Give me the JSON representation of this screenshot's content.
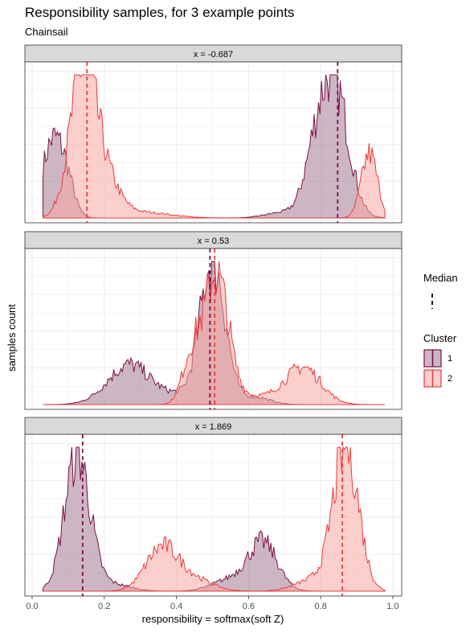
{
  "chart_data": {
    "type": "area",
    "title": "Responsibility samples, for 3 example points",
    "subtitle": "Chainsail",
    "xlabel": "responsibility = softmax(soft Z)",
    "ylabel": "samples count",
    "xlim": [
      0,
      1
    ],
    "x_ticks": [
      "0.0",
      "0.2",
      "0.4",
      "0.6",
      "0.8",
      "1.0"
    ],
    "grid": true,
    "legend": {
      "placement": "right",
      "median_title": "Median",
      "cluster_title": "Cluster",
      "entries": [
        "1",
        "2"
      ]
    },
    "colors": {
      "cluster1_line": "#7b1146",
      "cluster1_fill": "#a47a93",
      "cluster2_line": "#ec3b3b",
      "cluster2_fill": "#f8a7a3",
      "median1": "#7b1146",
      "median2": "#e8403f"
    },
    "panels": [
      {
        "label": "x = -0.687",
        "medians": [
          0.847,
          0.152
        ],
        "series": [
          {
            "name": "1",
            "peaks": [
              [
                0.06,
                0.032,
                0.55
              ],
              [
                0.1,
                0.02,
                0.1
              ],
              [
                0.835,
                0.04,
                0.95
              ],
              [
                0.78,
                0.03,
                0.25
              ],
              [
                0.7,
                0.05,
                0.04
              ]
            ],
            "domain": [
              0.03,
              0.98
            ]
          },
          {
            "name": "2",
            "peaks": [
              [
                0.14,
                0.036,
                1.0
              ],
              [
                0.2,
                0.04,
                0.25
              ],
              [
                0.935,
                0.022,
                0.45
              ],
              [
                0.3,
                0.08,
                0.04
              ]
            ],
            "domain": [
              0.03,
              0.98
            ]
          }
        ]
      },
      {
        "label": "x = 0.53",
        "medians": [
          0.493,
          0.506
        ],
        "series": [
          {
            "name": "1",
            "peaks": [
              [
                0.5,
                0.035,
                1.0
              ],
              [
                0.27,
                0.06,
                0.28
              ],
              [
                0.4,
                0.04,
                0.05
              ],
              [
                0.62,
                0.04,
                0.05
              ]
            ],
            "domain": [
              0.03,
              0.98
            ]
          },
          {
            "name": "2",
            "peaks": [
              [
                0.51,
                0.035,
                0.9
              ],
              [
                0.44,
                0.025,
                0.3
              ],
              [
                0.75,
                0.05,
                0.26
              ],
              [
                0.62,
                0.05,
                0.05
              ]
            ],
            "domain": [
              0.03,
              0.98
            ]
          }
        ]
      },
      {
        "label": "x = 1.869",
        "medians": [
          0.14,
          0.86
        ],
        "series": [
          {
            "name": "1",
            "peaks": [
              [
                0.125,
                0.035,
                0.95
              ],
              [
                0.64,
                0.04,
                0.33
              ],
              [
                0.55,
                0.05,
                0.08
              ],
              [
                0.22,
                0.05,
                0.05
              ]
            ],
            "domain": [
              0.03,
              0.98
            ]
          },
          {
            "name": "2",
            "peaks": [
              [
                0.87,
                0.035,
                1.0
              ],
              [
                0.36,
                0.045,
                0.3
              ],
              [
                0.45,
                0.05,
                0.08
              ],
              [
                0.78,
                0.05,
                0.08
              ]
            ],
            "domain": [
              0.03,
              0.98
            ]
          }
        ]
      }
    ]
  }
}
